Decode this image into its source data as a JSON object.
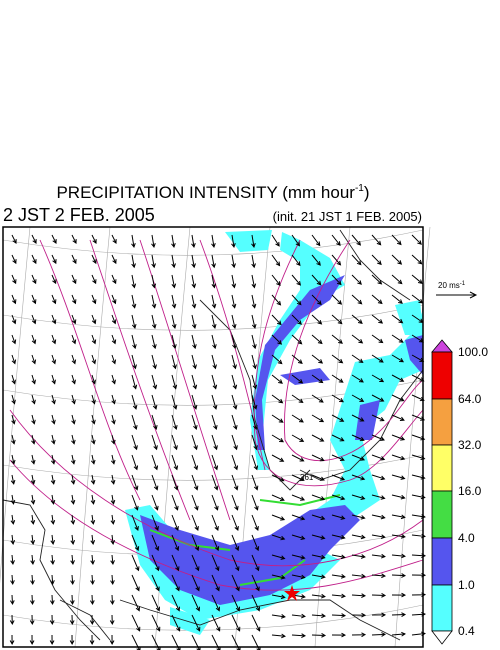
{
  "title": {
    "main": "PRECIPITATION INTENSITY (mm hour",
    "superscript": "-1",
    "close": ")"
  },
  "valid_time": "2 JST 2 FEB. 2005",
  "init_time": "(init. 21 JST 1 FEB. 2005)",
  "wind_scale": {
    "label": "20 ms",
    "superscript": "-1"
  },
  "contour_label": "361",
  "colorbar": {
    "labels": [
      "100.0",
      "64.0",
      "32.0",
      "16.0",
      "4.0",
      "1.0",
      "0.4"
    ]
  }
}
